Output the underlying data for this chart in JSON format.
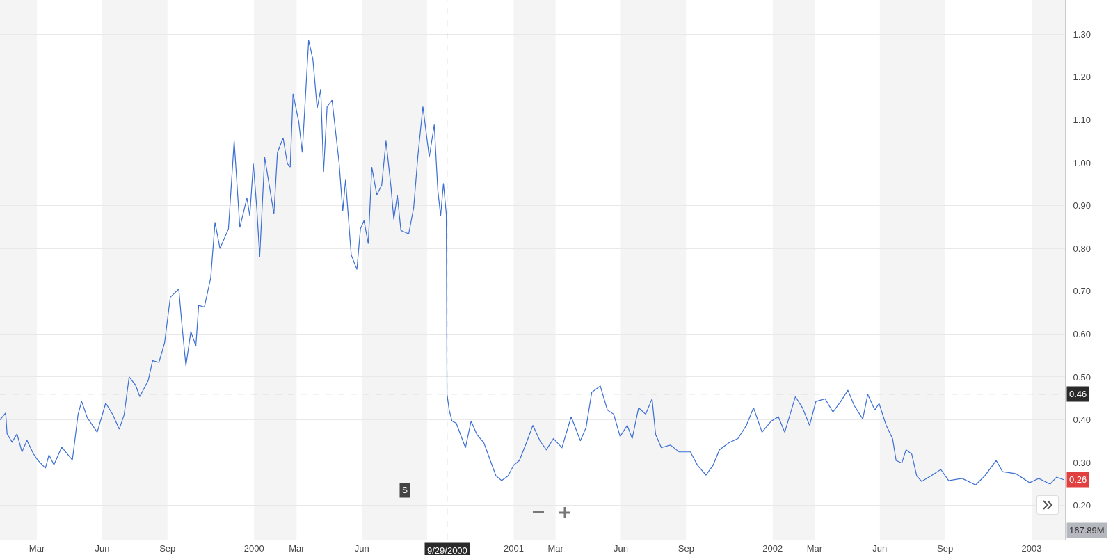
{
  "chart_data": {
    "type": "line",
    "x": [
      "1999-01-08",
      "1999-01-16",
      "1999-01-18",
      "1999-01-25",
      "1999-02-01",
      "1999-02-08",
      "1999-02-15",
      "1999-02-24",
      "1999-03-02",
      "1999-03-13",
      "1999-03-18",
      "1999-03-25",
      "1999-04-05",
      "1999-04-20",
      "1999-04-28",
      "1999-05-03",
      "1999-05-11",
      "1999-05-25",
      "1999-06-06",
      "1999-06-16",
      "1999-06-25",
      "1999-07-02",
      "1999-07-09",
      "1999-07-18",
      "1999-07-24",
      "1999-08-05",
      "1999-08-11",
      "1999-08-20",
      "1999-08-28",
      "1999-09-05",
      "1999-09-17",
      "1999-09-21",
      "1999-09-27",
      "1999-10-04",
      "1999-10-11",
      "1999-10-15",
      "1999-10-23",
      "1999-11-01",
      "1999-11-07",
      "1999-11-14",
      "1999-11-26",
      "1999-12-04",
      "1999-12-12",
      "1999-12-22",
      "1999-12-26",
      "1999-12-31",
      "2000-01-05",
      "2000-01-09",
      "2000-01-16",
      "2000-01-25",
      "2000-01-29",
      "2000-02-03",
      "2000-02-11",
      "2000-02-17",
      "2000-02-21",
      "2000-02-25",
      "2000-03-04",
      "2000-03-09",
      "2000-03-18",
      "2000-03-24",
      "2000-03-30",
      "2000-04-04",
      "2000-04-08",
      "2000-04-13",
      "2000-04-20",
      "2000-04-30",
      "2000-05-05",
      "2000-05-09",
      "2000-05-17",
      "2000-05-25",
      "2000-05-30",
      "2000-06-04",
      "2000-06-10",
      "2000-06-15",
      "2000-06-22",
      "2000-06-29",
      "2000-07-05",
      "2000-07-12",
      "2000-07-16",
      "2000-07-21",
      "2000-07-26",
      "2000-08-06",
      "2000-08-13",
      "2000-08-19",
      "2000-08-26",
      "2000-09-04",
      "2000-09-11",
      "2000-09-16",
      "2000-09-20",
      "2000-09-24",
      "2000-09-28",
      "2000-09-29",
      "2000-10-02",
      "2000-10-06",
      "2000-10-12",
      "2000-10-19",
      "2000-10-25",
      "2000-11-02",
      "2000-11-10",
      "2000-11-20",
      "2000-11-29",
      "2000-12-07",
      "2000-12-15",
      "2000-12-24",
      "2001-01-01",
      "2001-01-09",
      "2001-01-20",
      "2001-01-28",
      "2001-02-07",
      "2001-02-16",
      "2001-02-26",
      "2001-03-10",
      "2001-03-23",
      "2001-04-05",
      "2001-04-13",
      "2001-04-21",
      "2001-04-29",
      "2001-05-03",
      "2001-05-13",
      "2001-05-22",
      "2001-05-31",
      "2001-06-10",
      "2001-06-17",
      "2001-06-26",
      "2001-07-06",
      "2001-07-15",
      "2001-07-20",
      "2001-07-28",
      "2001-08-10",
      "2001-08-22",
      "2001-09-07",
      "2001-09-17",
      "2001-09-29",
      "2001-10-09",
      "2001-10-18",
      "2001-10-31",
      "2001-11-13",
      "2001-11-25",
      "2001-12-05",
      "2001-12-17",
      "2001-12-30",
      "2002-01-09",
      "2002-01-18",
      "2002-02-02",
      "2002-02-12",
      "2002-02-22",
      "2002-03-03",
      "2002-03-16",
      "2002-03-27",
      "2002-04-07",
      "2002-04-17",
      "2002-04-26",
      "2002-05-08",
      "2002-05-15",
      "2002-05-25",
      "2002-05-31",
      "2002-06-10",
      "2002-06-19",
      "2002-06-24",
      "2002-07-02",
      "2002-07-08",
      "2002-07-16",
      "2002-07-23",
      "2002-07-30",
      "2002-08-12",
      "2002-08-26",
      "2002-09-06",
      "2002-09-25",
      "2002-10-14",
      "2002-10-27",
      "2002-11-12",
      "2002-11-21",
      "2002-12-10",
      "2002-12-29",
      "2003-01-11",
      "2003-01-27",
      "2003-02-05",
      "2003-02-15"
    ],
    "series": [
      {
        "color": "#3b6fd4",
        "values": [
          0.4,
          0.416,
          0.367,
          0.348,
          0.367,
          0.325,
          0.352,
          0.321,
          0.306,
          0.287,
          0.318,
          0.295,
          0.336,
          0.306,
          0.412,
          0.443,
          0.405,
          0.371,
          0.439,
          0.412,
          0.378,
          0.412,
          0.5,
          0.481,
          0.454,
          0.492,
          0.538,
          0.534,
          0.58,
          0.686,
          0.705,
          0.629,
          0.526,
          0.606,
          0.572,
          0.667,
          0.663,
          0.732,
          0.861,
          0.8,
          0.846,
          1.051,
          0.849,
          0.918,
          0.876,
          0.998,
          0.891,
          0.781,
          1.013,
          0.922,
          0.88,
          1.024,
          1.058,
          0.998,
          0.99,
          1.161,
          1.096,
          1.024,
          1.286,
          1.241,
          1.127,
          1.172,
          0.979,
          1.131,
          1.146,
          0.998,
          0.887,
          0.96,
          0.785,
          0.751,
          0.846,
          0.865,
          0.811,
          0.99,
          0.925,
          0.948,
          1.051,
          0.944,
          0.868,
          0.925,
          0.842,
          0.834,
          0.895,
          1.017,
          1.131,
          1.013,
          1.089,
          0.937,
          0.876,
          0.952,
          0.88,
          0.46,
          0.423,
          0.397,
          0.392,
          0.361,
          0.335,
          0.397,
          0.366,
          0.346,
          0.305,
          0.269,
          0.258,
          0.269,
          0.294,
          0.305,
          0.351,
          0.387,
          0.351,
          0.33,
          0.356,
          0.335,
          0.407,
          0.351,
          0.382,
          0.464,
          0.474,
          0.479,
          0.423,
          0.413,
          0.361,
          0.387,
          0.356,
          0.428,
          0.413,
          0.449,
          0.366,
          0.335,
          0.341,
          0.325,
          0.325,
          0.294,
          0.271,
          0.294,
          0.33,
          0.346,
          0.356,
          0.387,
          0.428,
          0.371,
          0.397,
          0.407,
          0.371,
          0.454,
          0.428,
          0.387,
          0.443,
          0.449,
          0.418,
          0.443,
          0.469,
          0.433,
          0.402,
          0.459,
          0.423,
          0.438,
          0.387,
          0.356,
          0.305,
          0.299,
          0.33,
          0.32,
          0.269,
          0.256,
          0.269,
          0.284,
          0.258,
          0.263,
          0.248,
          0.269,
          0.305,
          0.279,
          0.274,
          0.253,
          0.263,
          0.25,
          0.266,
          0.26
        ]
      }
    ],
    "xlim": [
      "1999-01-08",
      "2003-02-17"
    ],
    "xticks": [
      {
        "value": "1999-03-01",
        "label": "Mar"
      },
      {
        "value": "1999-06-01",
        "label": "Jun"
      },
      {
        "value": "1999-09-01",
        "label": "Sep"
      },
      {
        "value": "2000-01-01",
        "label": "2000"
      },
      {
        "value": "2000-03-01",
        "label": "Mar"
      },
      {
        "value": "2000-06-01",
        "label": "Jun"
      },
      {
        "value": "2001-01-01",
        "label": "2001"
      },
      {
        "value": "2001-03-01",
        "label": "Mar"
      },
      {
        "value": "2001-06-01",
        "label": "Jun"
      },
      {
        "value": "2001-09-01",
        "label": "Sep"
      },
      {
        "value": "2002-01-01",
        "label": "2002"
      },
      {
        "value": "2002-03-01",
        "label": "Mar"
      },
      {
        "value": "2002-06-01",
        "label": "Jun"
      },
      {
        "value": "2002-09-01",
        "label": "Sep"
      },
      {
        "value": "2003-01-01",
        "label": "2003"
      }
    ],
    "ylim": [
      0.12,
      1.38
    ],
    "yticks": [
      {
        "value": 0.2,
        "label": "0.20"
      },
      {
        "value": 0.3,
        "label": "0.30"
      },
      {
        "value": 0.4,
        "label": "0.40"
      },
      {
        "value": 0.5,
        "label": "0.50"
      },
      {
        "value": 0.6,
        "label": "0.60"
      },
      {
        "value": 0.7,
        "label": "0.70"
      },
      {
        "value": 0.8,
        "label": "0.80"
      },
      {
        "value": 0.9,
        "label": "0.90"
      },
      {
        "value": 1.0,
        "label": "1.00"
      },
      {
        "value": 1.1,
        "label": "1.10"
      },
      {
        "value": 1.2,
        "label": "1.20"
      },
      {
        "value": 1.3,
        "label": "1.30"
      }
    ],
    "grid": "y",
    "marker": "none",
    "line_style": "solid",
    "bands": [
      {
        "axis": "x",
        "from": "1999-01-08",
        "to": "1999-03-01",
        "color": "#f4f4f5"
      },
      {
        "axis": "x",
        "from": "1999-06-01",
        "to": "1999-09-01",
        "color": "#f4f4f5"
      },
      {
        "axis": "x",
        "from": "2000-01-01",
        "to": "2000-03-01",
        "color": "#f4f4f5"
      },
      {
        "axis": "x",
        "from": "2000-06-01",
        "to": "2000-09-01",
        "color": "#f4f4f5"
      },
      {
        "axis": "x",
        "from": "2001-01-01",
        "to": "2001-03-01",
        "color": "#f4f4f5"
      },
      {
        "axis": "x",
        "from": "2001-06-01",
        "to": "2001-09-01",
        "color": "#f4f4f5"
      },
      {
        "axis": "x",
        "from": "2002-01-01",
        "to": "2002-03-01",
        "color": "#f4f4f5"
      },
      {
        "axis": "x",
        "from": "2002-06-01",
        "to": "2002-09-01",
        "color": "#f4f4f5"
      },
      {
        "axis": "x",
        "from": "2003-01-01",
        "to": "2003-02-17",
        "color": "#f4f4f5"
      }
    ],
    "ref_lines": [
      {
        "axis": "y",
        "value": 0.46,
        "label": "0.46",
        "color": "#777777",
        "line_style": "dashed"
      },
      {
        "axis": "x",
        "value": "2000-09-29",
        "label": "9/29/2000",
        "color": "#555555",
        "line_style": "dashed"
      }
    ],
    "annotations": [
      {
        "text": "0.26",
        "x": "2003-02-15",
        "y": 0.26
      },
      {
        "text": "S",
        "x": "2000-08-01",
        "y": 0.235
      },
      "167.89M"
    ]
  }
}
